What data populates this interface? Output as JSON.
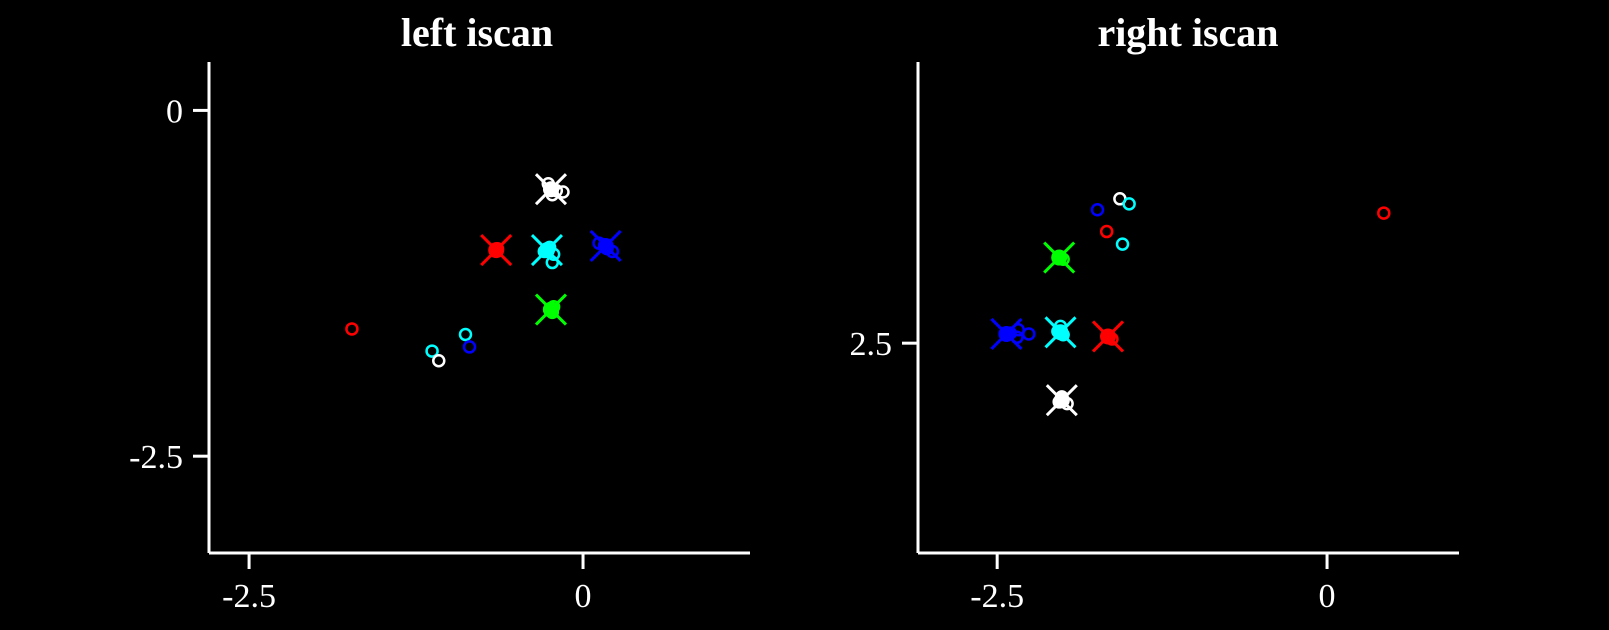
{
  "colors": {
    "background": "#000000",
    "axis": "#ffffff",
    "red": "#ff0000",
    "blue": "#0000ff",
    "cyan": "#00ffff",
    "green": "#00ff00",
    "white": "#ffffff"
  },
  "chart_data": [
    {
      "type": "scatter",
      "title": "left iscan",
      "xlabel": "",
      "ylabel": "",
      "xlim": [
        -2.8,
        1.25
      ],
      "ylim": [
        -3.2,
        0.35
      ],
      "x_ticks": [
        -2.5,
        0
      ],
      "y_ticks": [
        0,
        -2.5
      ],
      "x_tick_labels": [
        "-2.5",
        "0"
      ],
      "y_tick_labels": [
        "0",
        "-2.5"
      ],
      "grid": false,
      "legend": "none",
      "targets": [
        {
          "color": "white",
          "x": -0.24,
          "y": -0.57
        },
        {
          "color": "red",
          "x": -0.65,
          "y": -1.01
        },
        {
          "color": "cyan",
          "x": -0.27,
          "y": -1.01
        },
        {
          "color": "blue",
          "x": 0.17,
          "y": -0.98
        },
        {
          "color": "green",
          "x": -0.24,
          "y": -1.44
        }
      ],
      "points": [
        {
          "color": "white",
          "x": -0.26,
          "y": -0.53
        },
        {
          "color": "white",
          "x": -0.2,
          "y": -0.58
        },
        {
          "color": "white",
          "x": -0.15,
          "y": -0.59
        },
        {
          "color": "white",
          "x": -0.23,
          "y": -0.61
        },
        {
          "color": "red",
          "x": -0.65,
          "y": -1.01
        },
        {
          "color": "red",
          "x": -0.64,
          "y": -1.0
        },
        {
          "color": "cyan",
          "x": -0.25,
          "y": -0.99
        },
        {
          "color": "cyan",
          "x": -0.29,
          "y": -1.02
        },
        {
          "color": "cyan",
          "x": -0.22,
          "y": -1.04
        },
        {
          "color": "cyan",
          "x": -0.23,
          "y": -1.1
        },
        {
          "color": "blue",
          "x": 0.12,
          "y": -0.96
        },
        {
          "color": "blue",
          "x": 0.18,
          "y": -1.0
        },
        {
          "color": "blue",
          "x": 0.22,
          "y": -1.02
        },
        {
          "color": "green",
          "x": -0.22,
          "y": -1.42
        },
        {
          "color": "green",
          "x": -0.25,
          "y": -1.44
        },
        {
          "color": "green",
          "x": -0.23,
          "y": -1.46
        },
        {
          "color": "red",
          "x": -1.73,
          "y": -1.58
        },
        {
          "color": "cyan",
          "x": -0.88,
          "y": -1.62
        },
        {
          "color": "blue",
          "x": -0.85,
          "y": -1.71
        },
        {
          "color": "cyan",
          "x": -1.13,
          "y": -1.74
        },
        {
          "color": "white",
          "x": -1.08,
          "y": -1.81
        }
      ]
    },
    {
      "type": "scatter",
      "title": "right iscan",
      "xlabel": "",
      "ylabel": "",
      "xlim": [
        -3.1,
        1.0
      ],
      "ylim": [
        5.0,
        -0.85
      ],
      "x_ticks": [
        -2.5,
        0
      ],
      "y_ticks": [
        2.5
      ],
      "x_tick_labels": [
        "-2.5",
        "0"
      ],
      "y_tick_labels": [
        "2.5"
      ],
      "grid": false,
      "legend": "none",
      "targets": [
        {
          "color": "green",
          "x": -2.03,
          "y": 1.48
        },
        {
          "color": "blue",
          "x": -2.43,
          "y": 2.39
        },
        {
          "color": "cyan",
          "x": -2.02,
          "y": 2.37
        },
        {
          "color": "red",
          "x": -1.66,
          "y": 2.42
        },
        {
          "color": "white",
          "x": -2.01,
          "y": 3.18
        }
      ],
      "points": [
        {
          "color": "green",
          "x": -2.03,
          "y": 1.47
        },
        {
          "color": "green",
          "x": -2.0,
          "y": 1.5
        },
        {
          "color": "blue",
          "x": -2.4,
          "y": 2.38
        },
        {
          "color": "blue",
          "x": -2.34,
          "y": 2.34
        },
        {
          "color": "blue",
          "x": -2.26,
          "y": 2.39
        },
        {
          "color": "blue",
          "x": -2.35,
          "y": 2.43
        },
        {
          "color": "cyan",
          "x": -2.02,
          "y": 2.3
        },
        {
          "color": "cyan",
          "x": -2.04,
          "y": 2.36
        },
        {
          "color": "cyan",
          "x": -2.0,
          "y": 2.4
        },
        {
          "color": "red",
          "x": -1.66,
          "y": 2.42
        },
        {
          "color": "red",
          "x": -1.63,
          "y": 2.45
        },
        {
          "color": "white",
          "x": -2.01,
          "y": 3.14
        },
        {
          "color": "white",
          "x": -1.97,
          "y": 3.22
        },
        {
          "color": "white",
          "x": -2.03,
          "y": 3.2
        },
        {
          "color": "white",
          "x": -1.57,
          "y": 0.78
        },
        {
          "color": "cyan",
          "x": -1.5,
          "y": 0.84
        },
        {
          "color": "blue",
          "x": -1.74,
          "y": 0.91
        },
        {
          "color": "red",
          "x": -1.67,
          "y": 1.17
        },
        {
          "color": "cyan",
          "x": -1.55,
          "y": 1.32
        },
        {
          "color": "red",
          "x": 0.43,
          "y": 0.95
        }
      ]
    }
  ]
}
